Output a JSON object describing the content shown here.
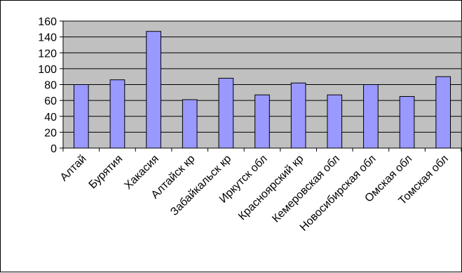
{
  "chart_data": {
    "type": "bar",
    "categories": [
      "Алтай",
      "Бурятия",
      "Хакасия",
      "Алтайск кр",
      "Забайкальск кр",
      "Иркутск обл",
      "Красноярский кр",
      "Кемеровская обл",
      "Новосибирская обл",
      "Омская обл",
      "Томская обл"
    ],
    "values": [
      80,
      86,
      147,
      61,
      88,
      67,
      82,
      67,
      80,
      65,
      90
    ],
    "yticks": [
      "0",
      "20",
      "40",
      "60",
      "80",
      "100",
      "120",
      "140",
      "160"
    ],
    "ylim": [
      0,
      160
    ],
    "grid": true,
    "legend": "none",
    "colors": {
      "bar_fill": "#9999ff",
      "bar_stroke": "#000000",
      "plot_bg": "#c0c0c0",
      "grid": "#000000"
    }
  }
}
